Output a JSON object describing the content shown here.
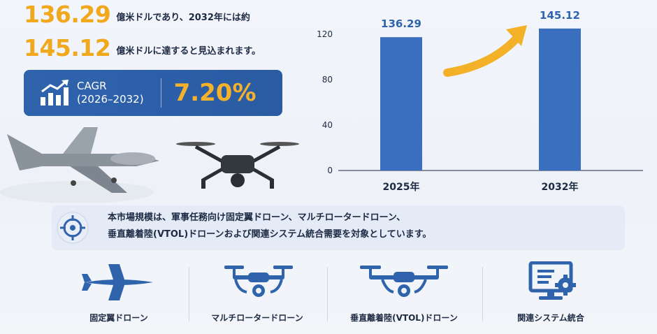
{
  "headline": {
    "value_2025": "136.29",
    "text_2025": "億米ドルであり、2032年には約",
    "value_2032": "145.12",
    "text_2032": "億米ドルに達すると見込まれます。"
  },
  "cagr": {
    "label_line1": "CAGR",
    "label_line2": "(2026–2032)",
    "value": "7.20%"
  },
  "chart_data": {
    "type": "bar",
    "categories": [
      "2025年",
      "2032年"
    ],
    "values": [
      136.29,
      145.12
    ],
    "data_labels": [
      "136.29",
      "145.12"
    ],
    "yticks": [
      "0",
      "40",
      "80",
      "120"
    ],
    "ylim": [
      0,
      160
    ]
  },
  "info": {
    "line1": "本市場規模は、軍事任務向け固定翼ドローン、マルチロータードローン、",
    "line2": "垂直離着陸(VTOL)ドローンおよび関連システム統合需要を対象としています。"
  },
  "categories": [
    {
      "label": "固定翼ドローン",
      "icon": "fixed-wing-drone-icon"
    },
    {
      "label": "マルチロータードローン",
      "icon": "multirotor-drone-icon"
    },
    {
      "label": "垂直離着陸(VTOL)ドローン",
      "icon": "vtol-drone-icon"
    },
    {
      "label": "関連システム統合",
      "icon": "system-integration-icon"
    }
  ],
  "colors": {
    "accent_orange": "#f0a81c",
    "brand_blue": "#2f64ad",
    "bar_blue": "#3a6fc0",
    "text_dark": "#1d2a44"
  }
}
